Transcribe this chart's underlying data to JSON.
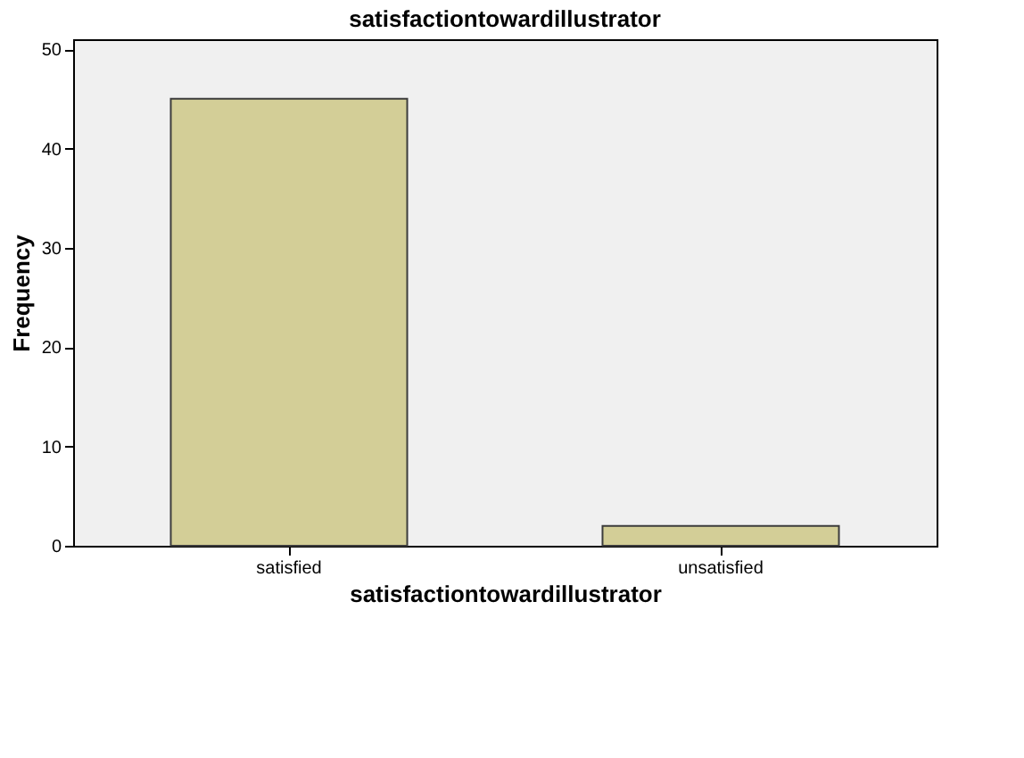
{
  "chart_data": {
    "type": "bar",
    "title": "satisfactiontowardillustrator",
    "xlabel": "satisfactiontowardillustrator",
    "ylabel": "Frequency",
    "categories": [
      "satisfied",
      "unsatisfied"
    ],
    "values": [
      45,
      2
    ],
    "color": "#d3ce97",
    "ylim": [
      0,
      51
    ],
    "yticks": [
      0,
      10,
      20,
      30,
      40,
      50
    ],
    "grid": false
  }
}
